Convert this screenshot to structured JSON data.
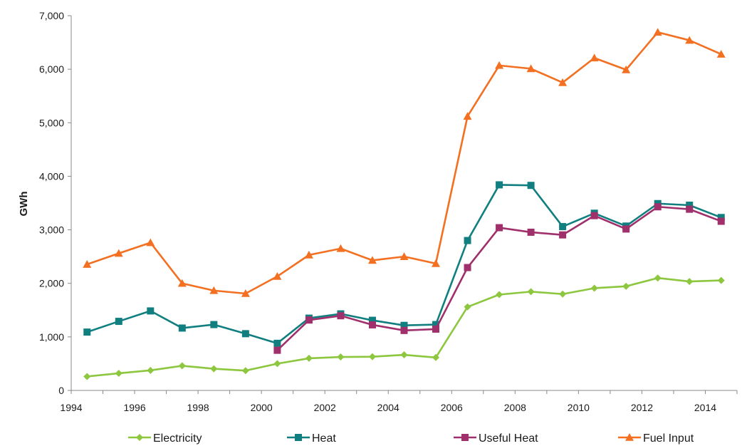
{
  "chart_data": {
    "type": "line",
    "title": "",
    "xlabel": "",
    "ylabel": "GWh",
    "ylim": [
      0,
      7000
    ],
    "yticks": [
      "0",
      "1,000",
      "2,000",
      "3,000",
      "4,000",
      "5,000",
      "6,000",
      "7,000"
    ],
    "xtick_labels": [
      "1994",
      "1996",
      "1998",
      "2000",
      "2002",
      "2004",
      "2006",
      "2008",
      "2010",
      "2012",
      "2014"
    ],
    "x": [
      1994,
      1995,
      1996,
      1997,
      1998,
      1999,
      2000,
      2001,
      2002,
      2003,
      2004,
      2005,
      2006,
      2007,
      2008,
      2009,
      2010,
      2011,
      2012,
      2013,
      2014
    ],
    "grid": false,
    "legend_position": "bottom",
    "series": [
      {
        "name": "Electricity",
        "color": "#8dc63f",
        "marker": "diamond",
        "values": [
          260,
          320,
          375,
          460,
          405,
          370,
          500,
          600,
          625,
          630,
          665,
          615,
          1560,
          1790,
          1845,
          1800,
          1910,
          1945,
          2100,
          2035,
          2055
        ]
      },
      {
        "name": "Heat",
        "color": "#117f80",
        "marker": "square",
        "values": [
          1090,
          1290,
          1485,
          1165,
          1230,
          1060,
          880,
          1350,
          1430,
          1310,
          1215,
          1230,
          2800,
          3840,
          3830,
          3060,
          3310,
          3070,
          3490,
          3460,
          3230
        ]
      },
      {
        "name": "Useful Heat",
        "color": "#a0306b",
        "marker": "square",
        "values": [
          null,
          null,
          null,
          null,
          null,
          null,
          750,
          1315,
          1395,
          1225,
          1120,
          1145,
          2295,
          3040,
          2955,
          2905,
          3265,
          3015,
          3430,
          3385,
          3160
        ]
      },
      {
        "name": "Fuel Input",
        "color": "#f36f21",
        "marker": "triangle",
        "values": [
          2355,
          2560,
          2760,
          2000,
          1865,
          1810,
          2130,
          2530,
          2650,
          2430,
          2500,
          2370,
          5120,
          6070,
          6010,
          5750,
          6210,
          5990,
          6690,
          6540,
          6280
        ]
      }
    ]
  }
}
